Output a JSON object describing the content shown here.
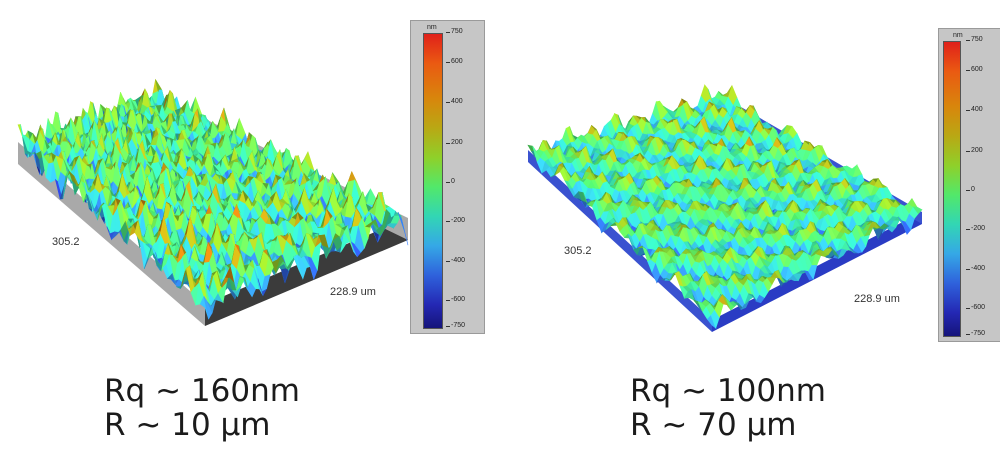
{
  "panels": [
    {
      "dim_x": "305.2",
      "dim_y": "228.9 um",
      "colorbar": {
        "unit": "nm",
        "ticks": [
          "750",
          "600",
          "400",
          "200",
          "0",
          "-200",
          "-400",
          "-600",
          "-750"
        ]
      },
      "caption_line1": "Rq ~ 160nm",
      "caption_line2": "R ~ 10 µm"
    },
    {
      "dim_x": "305.2",
      "dim_y": "228.9 um",
      "colorbar": {
        "unit": "nm",
        "ticks": [
          "750",
          "600",
          "400",
          "200",
          "0",
          "-200",
          "-400",
          "-600",
          "-750"
        ]
      },
      "caption_line1": "Rq ~ 100nm",
      "caption_line2": "R ~ 70 µm"
    }
  ],
  "colors": {
    "base_left": "#3b3b3b",
    "base_right": "#2a3cc4"
  }
}
